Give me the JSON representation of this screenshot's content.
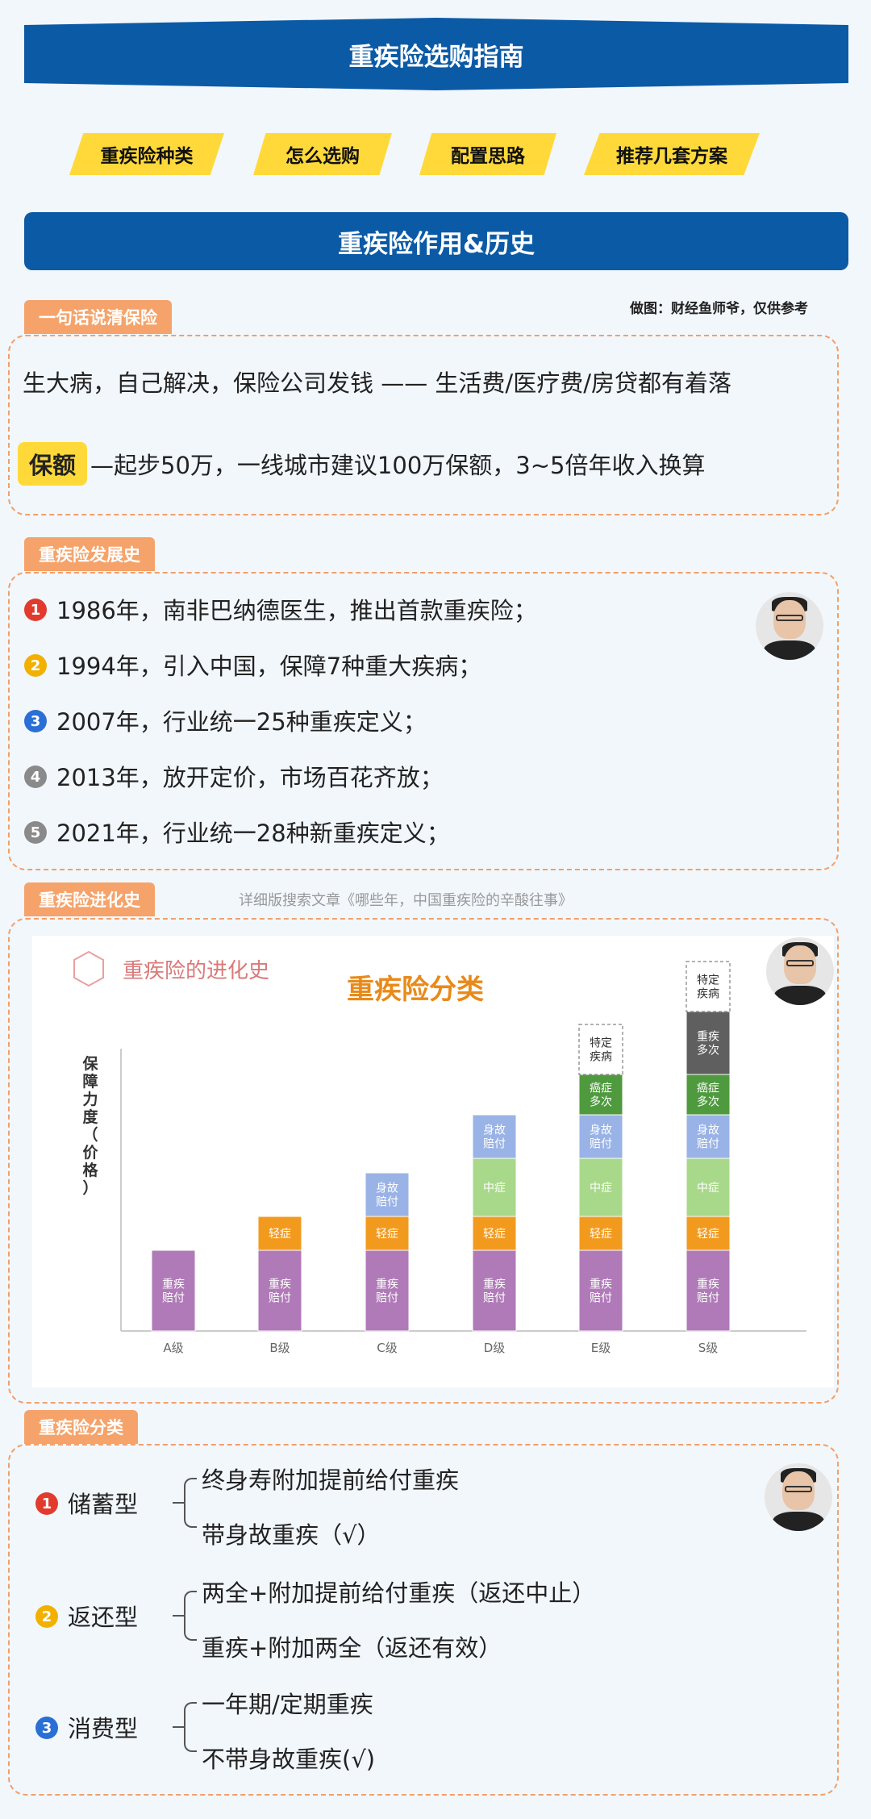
{
  "header": {
    "title": "重疾险选购指南"
  },
  "tabs": [
    "重疾险种类",
    "怎么选购",
    "配置思路",
    "推荐几套方案"
  ],
  "section_banner": "重疾险作用&历史",
  "credit": "做图：财经鱼师爷，仅供参考",
  "summary": {
    "label": "一句话说清保险",
    "line1": "生大病，自己解决，保险公司发钱 —— 生活费/医疗费/房贷都有着落",
    "highlight": "保额",
    "line2": "—起步50万，一线城市建议100万保额，3~5倍年收入换算"
  },
  "history": {
    "label": "重疾险发展史",
    "items": [
      {
        "num": "1",
        "color": "#e23b2e",
        "text": "1986年，南非巴纳德医生，推出首款重疾险；"
      },
      {
        "num": "2",
        "color": "#f2b100",
        "text": "1994年，引入中国，保障7种重大疾病；"
      },
      {
        "num": "3",
        "color": "#2a6fd6",
        "text": "2007年，行业统一25种重疾定义；"
      },
      {
        "num": "4",
        "color": "#8a8a8a",
        "text": "2013年，放开定价，市场百花齐放；"
      },
      {
        "num": "5",
        "color": "#8a8a8a",
        "text": "2021年，行业统一28种新重疾定义；"
      }
    ]
  },
  "evolution": {
    "label": "重疾险进化史",
    "note": "详细版搜索文章《哪些年，中国重疾险的辛酸往事》"
  },
  "chart_data": {
    "type": "bar",
    "title": "重疾险分类",
    "subtitle": "重疾险的进化史",
    "ylabel": "保障力度（价格）",
    "categories": [
      "A级",
      "B级",
      "C级",
      "D级",
      "E级",
      "S级"
    ],
    "stack_order": [
      "重疾赔付",
      "轻症",
      "中症",
      "身故赔付",
      "癌症多次",
      "重疾多次",
      "特定疾病"
    ],
    "colors": {
      "重疾赔付": "#b07ab8",
      "轻症": "#f29a1e",
      "中症": "#a8d88a",
      "身故赔付": "#9ab3e6",
      "癌症多次": "#4f9a3e",
      "重疾多次": "#5f5f5f",
      "特定疾病": "#ffffff"
    },
    "stacks": [
      [
        "重疾赔付"
      ],
      [
        "重疾赔付",
        "轻症"
      ],
      [
        "重疾赔付",
        "轻症",
        "身故赔付"
      ],
      [
        "重疾赔付",
        "轻症",
        "中症",
        "身故赔付"
      ],
      [
        "重疾赔付",
        "轻症",
        "中症",
        "身故赔付",
        "癌症多次",
        "特定疾病"
      ],
      [
        "重疾赔付",
        "轻症",
        "中症",
        "身故赔付",
        "癌症多次",
        "重疾多次",
        "特定疾病"
      ]
    ],
    "segment_labels": {
      "重疾赔付": [
        "重疾",
        "赔付"
      ],
      "轻症": [
        "轻症"
      ],
      "中症": [
        "中症"
      ],
      "身故赔付": [
        "身故",
        "赔付"
      ],
      "癌症多次": [
        "癌症",
        "多次"
      ],
      "重疾多次": [
        "重疾",
        "多次"
      ],
      "特定疾病": [
        "特定",
        "疾病"
      ]
    }
  },
  "classification": {
    "label": "重疾险分类",
    "groups": [
      {
        "num": "1",
        "color": "#e23b2e",
        "type": "储蓄型",
        "items": [
          "终身寿附加提前给付重疾",
          "带身故重疾（√）"
        ]
      },
      {
        "num": "2",
        "color": "#f2b100",
        "type": "返还型",
        "items": [
          "两全+附加提前给付重疾（返还中止）",
          "重疾+附加两全（返还有效）"
        ]
      },
      {
        "num": "3",
        "color": "#2a6fd6",
        "type": "消费型",
        "items": [
          "一年期/定期重疾",
          "不带身故重疾(√)"
        ]
      }
    ]
  }
}
